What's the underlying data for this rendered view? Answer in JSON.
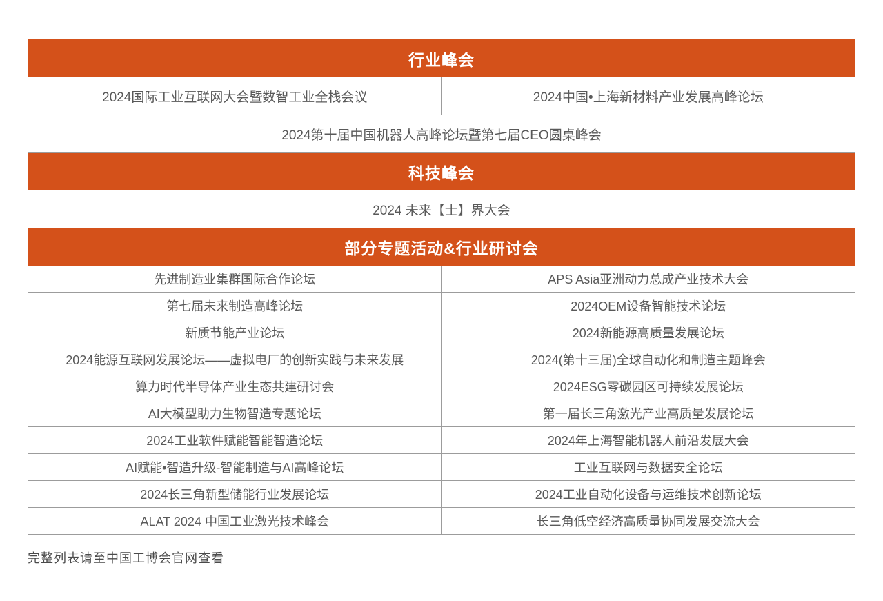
{
  "page": {
    "background": "#FFFFFF",
    "accent_color": "#D4511A",
    "border_color": "#9C9C9C",
    "cell_text_color": "#595959",
    "header_text_color": "#FFFFFF"
  },
  "sections": [
    {
      "header": "行业峰会",
      "rows": [
        {
          "cells": [
            "2024国际工业互联网大会暨数智工业全栈会议",
            "2024中国•上海新材料产业发展高峰论坛"
          ]
        },
        {
          "cells": [
            "2024第十届中国机器人高峰论坛暨第七届CEO圆桌峰会"
          ]
        }
      ]
    },
    {
      "header": "科技峰会",
      "rows": [
        {
          "cells": [
            "2024 未来【士】界大会"
          ]
        }
      ]
    },
    {
      "header": "部分专题活动&行业研讨会",
      "rows": [
        {
          "cells": [
            "先进制造业集群国际合作论坛",
            "APS Asia亚洲动力总成产业技术大会"
          ]
        },
        {
          "cells": [
            "第七届未来制造高峰论坛",
            "2024OEM设备智能技术论坛"
          ]
        },
        {
          "cells": [
            "新质节能产业论坛",
            "2024新能源高质量发展论坛"
          ]
        },
        {
          "cells": [
            "2024能源互联网发展论坛——虚拟电厂的创新实践与未来发展",
            "2024(第十三届)全球自动化和制造主题峰会"
          ]
        },
        {
          "cells": [
            "算力时代半导体产业生态共建研讨会",
            "2024ESG零碳园区可持续发展论坛"
          ]
        },
        {
          "cells": [
            "AI大模型助力生物智造专题论坛",
            "第一届长三角激光产业高质量发展论坛"
          ]
        },
        {
          "cells": [
            "2024工业软件赋能智能智造论坛",
            "2024年上海智能机器人前沿发展大会"
          ]
        },
        {
          "cells": [
            "AI赋能•智造升级-智能制造与AI高峰论坛",
            "工业互联网与数据安全论坛"
          ]
        },
        {
          "cells": [
            "2024长三角新型储能行业发展论坛",
            "2024工业自动化设备与运维技术创新论坛"
          ]
        },
        {
          "cells": [
            "ALAT 2024 中国工业激光技术峰会",
            "长三角低空经济高质量协同发展交流大会"
          ]
        }
      ]
    }
  ],
  "footer_note": "完整列表请至中国工博会官网查看"
}
